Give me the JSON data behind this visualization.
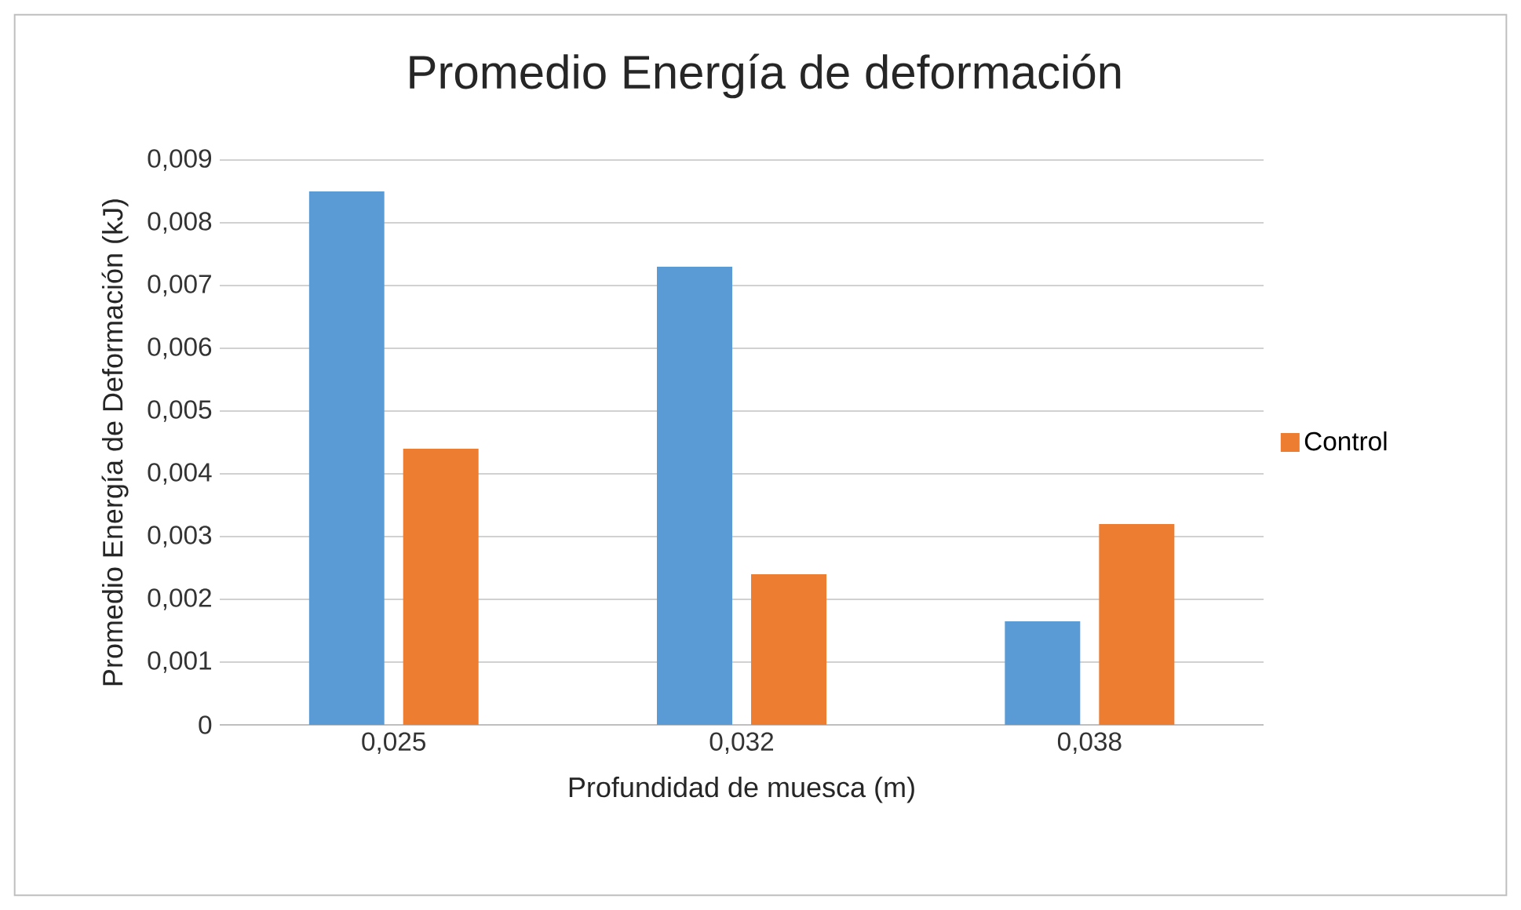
{
  "chart_data": {
    "type": "bar",
    "title": "Promedio Energía de deformación",
    "xlabel": "Profundidad de muesca (m)",
    "ylabel": "Promedio Energía de Deformación (kJ)",
    "categories": [
      "0,025",
      "0,032",
      "0,038"
    ],
    "series": [
      {
        "color": "#5b9bd5",
        "values": [
          0.0085,
          0.0073,
          0.00165
        ]
      },
      {
        "name": "Control",
        "color": "#ed7d31",
        "values": [
          0.0044,
          0.0024,
          0.0032
        ]
      }
    ],
    "ylim": [
      0,
      0.009
    ],
    "yticks": [
      {
        "value": 0,
        "label": "0"
      },
      {
        "value": 0.001,
        "label": "0,001"
      },
      {
        "value": 0.002,
        "label": "0,002"
      },
      {
        "value": 0.003,
        "label": "0,003"
      },
      {
        "value": 0.004,
        "label": "0,004"
      },
      {
        "value": 0.005,
        "label": "0,005"
      },
      {
        "value": 0.006,
        "label": "0,006"
      },
      {
        "value": 0.007,
        "label": "0,007"
      },
      {
        "value": 0.008,
        "label": "0,008"
      },
      {
        "value": 0.009,
        "label": "0,009"
      }
    ],
    "grid": "y",
    "legend": "right"
  }
}
